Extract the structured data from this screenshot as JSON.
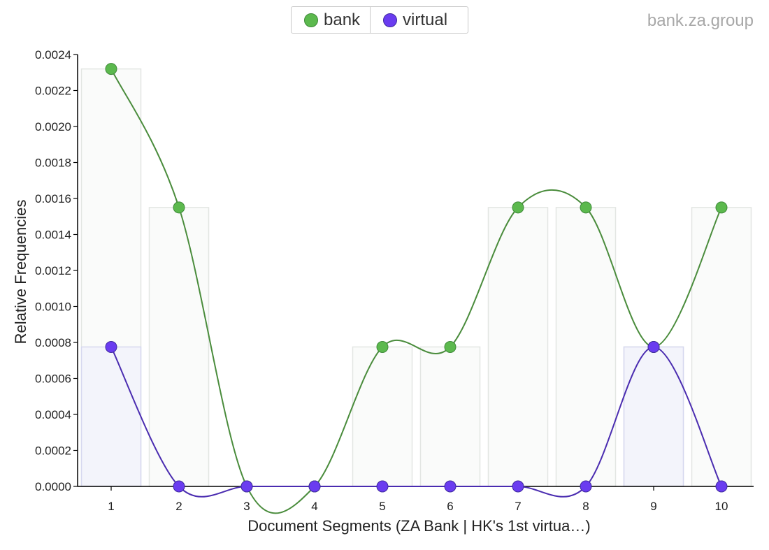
{
  "source_label": "bank.za.group",
  "legend": [
    {
      "label": "bank",
      "color": "#5cb94e",
      "stroke": "#3f8a3a"
    },
    {
      "label": "virtual",
      "color": "#6a3cf0",
      "stroke": "#3f2a9e"
    }
  ],
  "chart_data": {
    "type": "line",
    "xlabel": "Document Segments (ZA Bank | HK's 1st virtua…)",
    "ylabel": "Relative Frequencies",
    "x": [
      1,
      2,
      3,
      4,
      5,
      6,
      7,
      8,
      9,
      10
    ],
    "ylim": [
      0,
      0.0024
    ],
    "yticks": [
      "0.0000",
      "0.0002",
      "0.0004",
      "0.0006",
      "0.0008",
      "0.0010",
      "0.0012",
      "0.0014",
      "0.0016",
      "0.0018",
      "0.0020",
      "0.0022",
      "0.0024"
    ],
    "series": [
      {
        "name": "bank",
        "color": "#5cb94e",
        "line_color": "#4a8c3c",
        "values": [
          0.00232,
          0.00155,
          0,
          0,
          0.000775,
          0.000775,
          0.00155,
          0.00155,
          0.000775,
          0.00155
        ]
      },
      {
        "name": "virtual",
        "color": "#6a3cf0",
        "line_color": "#4a2cb0",
        "values": [
          0.000775,
          0,
          0,
          0,
          0,
          0,
          0,
          0,
          0.000775,
          0
        ]
      }
    ],
    "grid": false,
    "legend_position": "top-center"
  }
}
